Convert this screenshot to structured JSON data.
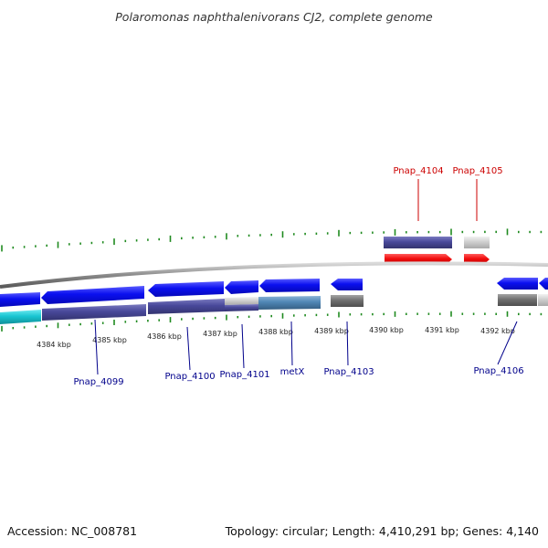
{
  "title": "Polaromonas naphthalenivorans CJ2, complete genome",
  "accession": "Accession: NC_008781",
  "summary": "Topology: circular; Length: 4,410,291 bp; Genes: 4,140",
  "colors": {
    "forward_cds": "#0a10ee",
    "reverse_cds": "#ee0a0a",
    "gene_feature": "#4a4a95",
    "pseudo_feature": "#c4c4c4",
    "misc_feature": "#777777",
    "cyan_feature": "#19c6d2",
    "steel_feature": "#4f86b5",
    "gc_skew_tick": "#1f8a1f",
    "backbone": "#8a8a8a",
    "label_forward": "#00008b",
    "label_reverse": "#cc0000"
  },
  "ruler": {
    "unit": "kbp",
    "ticks": [
      "4384 kbp",
      "4385 kbp",
      "4386 kbp",
      "4387 kbp",
      "4388 kbp",
      "4389 kbp",
      "4390 kbp",
      "4391 kbp",
      "4392 kbp"
    ]
  },
  "gene_labels": [
    {
      "name": "Pnap_4099",
      "strand": "forward"
    },
    {
      "name": "Pnap_4100",
      "strand": "forward"
    },
    {
      "name": "Pnap_4101",
      "strand": "forward"
    },
    {
      "name": "metX",
      "strand": "forward"
    },
    {
      "name": "Pnap_4103",
      "strand": "forward"
    },
    {
      "name": "Pnap_4104",
      "strand": "reverse"
    },
    {
      "name": "Pnap_4105",
      "strand": "reverse"
    },
    {
      "name": "Pnap_4106",
      "strand": "forward"
    }
  ]
}
